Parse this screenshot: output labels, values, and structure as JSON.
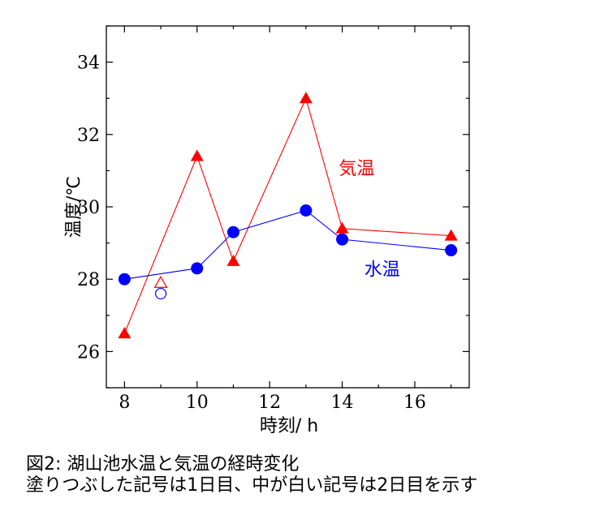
{
  "chart_data": {
    "type": "line",
    "xlabel": "時刻/ h",
    "ylabel": "温度/℃",
    "xlim": [
      7.5,
      17.5
    ],
    "ylim": [
      25,
      35
    ],
    "xticks": [
      8,
      10,
      12,
      14,
      16
    ],
    "yticks": [
      26,
      28,
      30,
      32,
      34
    ],
    "grid": false,
    "series": [
      {
        "name": "気温",
        "color": "#ff0000",
        "marker": "triangle",
        "x": [
          8,
          10,
          11,
          13,
          14,
          17
        ],
        "y": [
          26.5,
          31.4,
          28.5,
          33.0,
          29.4,
          29.2
        ],
        "label_pos": [
          14.4,
          30.9
        ]
      },
      {
        "name": "水温",
        "color": "#0000ff",
        "marker": "circle",
        "x": [
          8,
          10,
          11,
          13,
          14,
          17
        ],
        "y": [
          28.0,
          28.3,
          29.3,
          29.9,
          29.1,
          28.8
        ],
        "label_pos": [
          15.1,
          28.1
        ]
      }
    ],
    "open_markers": [
      {
        "series": "気温",
        "marker": "triangle",
        "color": "#ff0000",
        "x": 9,
        "y": 27.9
      },
      {
        "series": "水温",
        "marker": "circle",
        "color": "#0000ff",
        "x": 9,
        "y": 27.6
      }
    ]
  },
  "caption": {
    "line1": "図2: 湖山池水温と気温の経時変化",
    "line2": "塗りつぶした記号は1日目、中が白い記号は2日目を示す"
  }
}
